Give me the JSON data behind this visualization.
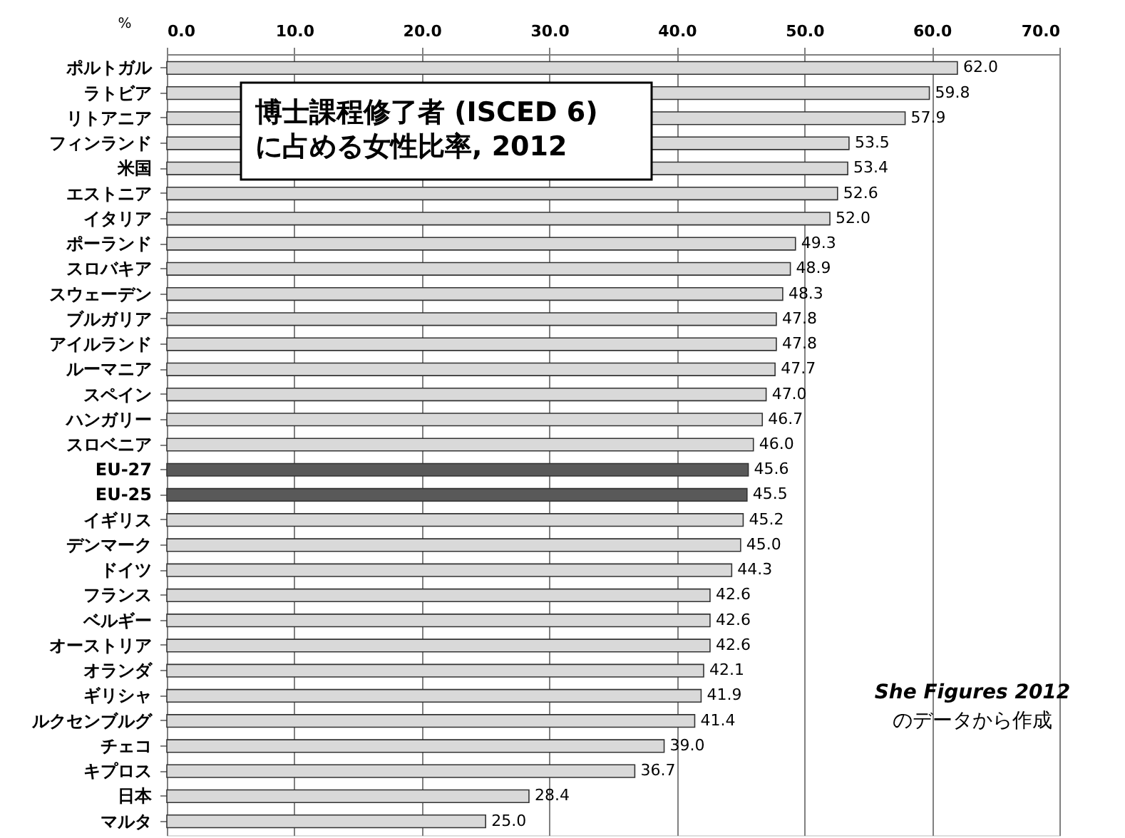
{
  "chart_data": {
    "type": "bar",
    "orientation": "horizontal",
    "title": "博士課程修了者 (ISCED 6)\nに占める女性比率, 2012",
    "xlabel": "%",
    "categories": [
      "ポルトガル",
      "ラトビア",
      "リトアニア",
      "フィンランド",
      "米国",
      "エストニア",
      "イタリア",
      "ポーランド",
      "スロバキア",
      "スウェーデン",
      "ブルガリア",
      "アイルランド",
      "ルーマニア",
      "スペイン",
      "ハンガリー",
      "スロベニア",
      "EU-27",
      "EU-25",
      "イギリス",
      "デンマーク",
      "ドイツ",
      "フランス",
      "ベルギー",
      "オーストリア",
      "オランダ",
      "ギリシャ",
      "ルクセンブルグ",
      "チェコ",
      "キプロス",
      "日本",
      "マルタ"
    ],
    "values": [
      62.0,
      59.8,
      57.9,
      53.5,
      53.4,
      52.6,
      52.0,
      49.3,
      48.9,
      48.3,
      47.8,
      47.8,
      47.7,
      47.0,
      46.7,
      46.0,
      45.6,
      45.5,
      45.2,
      45.0,
      44.3,
      42.6,
      42.6,
      42.6,
      42.1,
      41.9,
      41.4,
      39.0,
      36.7,
      28.4,
      25.0
    ],
    "colors": [
      "#d9d9d9",
      "#d9d9d9",
      "#d9d9d9",
      "#d9d9d9",
      "#d9d9d9",
      "#d9d9d9",
      "#d9d9d9",
      "#d9d9d9",
      "#d9d9d9",
      "#d9d9d9",
      "#d9d9d9",
      "#d9d9d9",
      "#d9d9d9",
      "#d9d9d9",
      "#d9d9d9",
      "#d9d9d9",
      "#595959",
      "#595959",
      "#d9d9d9",
      "#d9d9d9",
      "#d9d9d9",
      "#d9d9d9",
      "#d9d9d9",
      "#d9d9d9",
      "#d9d9d9",
      "#d9d9d9",
      "#d9d9d9",
      "#d9d9d9",
      "#d9d9d9",
      "#d9d9d9",
      "#d9d9d9"
    ],
    "xlim": [
      0,
      70
    ],
    "xticks": [
      {
        "value": 0,
        "label": "0.0"
      },
      {
        "value": 10,
        "label": "10.0"
      },
      {
        "value": 20,
        "label": "20.0"
      },
      {
        "value": 30,
        "label": "30.0"
      },
      {
        "value": 40,
        "label": "40.0"
      },
      {
        "value": 50,
        "label": "50.0"
      },
      {
        "value": 60,
        "label": "60.0"
      },
      {
        "value": 70,
        "label": "70.0"
      }
    ],
    "grid": "x",
    "value_labels": [
      "62.0",
      "59.8",
      "57.9",
      "53.5",
      "53.4",
      "52.6",
      "52.0",
      "49.3",
      "48.9",
      "48.3",
      "47.8",
      "47.8",
      "47.7",
      "47.0",
      "46.7",
      "46.0",
      "45.6",
      "45.5",
      "45.2",
      "45.0",
      "44.3",
      "42.6",
      "42.6",
      "42.6",
      "42.1",
      "41.9",
      "41.4",
      "39.0",
      "36.7",
      "28.4",
      "25.0"
    ],
    "annotations": [
      "She Figures 2012",
      "のデータから作成"
    ]
  }
}
